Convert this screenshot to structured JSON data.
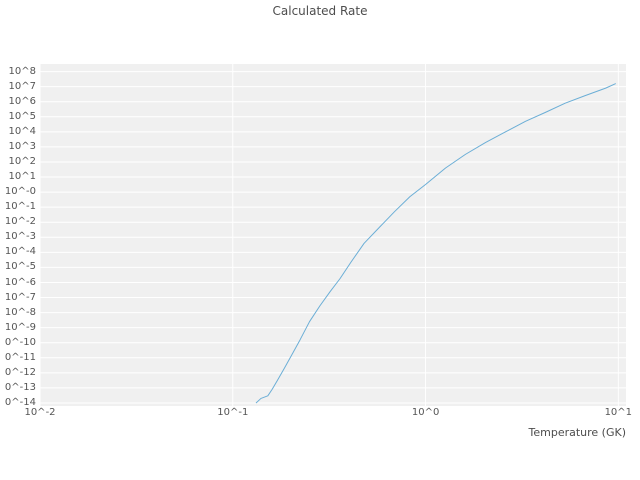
{
  "chart_data": {
    "type": "line",
    "title": "Calculated Rate",
    "xlabel": "Temperature (GK)",
    "ylabel": "",
    "x_scale": "log",
    "y_scale": "log",
    "xlim": [
      0.01,
      10.96
    ],
    "ylim": [
      6.3e-15,
      320000000.0
    ],
    "grid": true,
    "legend": false,
    "plot_bg_color": "#f0f0f0",
    "grid_color": "#ffffff",
    "title_color": "#4d4d4d",
    "tick_color": "#555555",
    "x_ticks": [
      {
        "label": "10^-2",
        "value": 0.01
      },
      {
        "label": "10^-1",
        "value": 0.1
      },
      {
        "label": "10^0",
        "value": 1
      },
      {
        "label": "10^1",
        "value": 10
      }
    ],
    "y_ticks": [
      {
        "label": "10^8",
        "exponent": 8
      },
      {
        "label": "10^7",
        "exponent": 7
      },
      {
        "label": "10^6",
        "exponent": 6
      },
      {
        "label": "10^5",
        "exponent": 5
      },
      {
        "label": "10^4",
        "exponent": 4
      },
      {
        "label": "10^3",
        "exponent": 3
      },
      {
        "label": "10^2",
        "exponent": 2
      },
      {
        "label": "10^1",
        "exponent": 1
      },
      {
        "label": "10^-0",
        "exponent": 0
      },
      {
        "label": "10^-1",
        "exponent": -1
      },
      {
        "label": "10^-2",
        "exponent": -2
      },
      {
        "label": "10^-3",
        "exponent": -3
      },
      {
        "label": "10^-4",
        "exponent": -4
      },
      {
        "label": "10^-5",
        "exponent": -5
      },
      {
        "label": "10^-6",
        "exponent": -6
      },
      {
        "label": "10^-7",
        "exponent": -7
      },
      {
        "label": "10^-8",
        "exponent": -8
      },
      {
        "label": "10^-9",
        "exponent": -9
      },
      {
        "label": "0^-10",
        "exponent": -10
      },
      {
        "label": "0^-11",
        "exponent": -11
      },
      {
        "label": "0^-12",
        "exponent": -12
      },
      {
        "label": "0^-13",
        "exponent": -13
      },
      {
        "label": "0^-14",
        "exponent": -14
      }
    ],
    "series": [
      {
        "name": "calculated-rate",
        "color": "#6baed6",
        "x": [
          0.132,
          0.14,
          0.152,
          0.16,
          0.17,
          0.185,
          0.2,
          0.223,
          0.25,
          0.283,
          0.32,
          0.36,
          0.41,
          0.48,
          0.58,
          0.69,
          0.83,
          1.0,
          1.27,
          1.61,
          2.05,
          2.6,
          3.3,
          4.2,
          5.3,
          6.7,
          8.6,
          9.7
        ],
        "y": [
          1e-14,
          2e-14,
          3e-14,
          8e-14,
          3e-13,
          2e-12,
          1.2e-11,
          1.5e-10,
          2.5e-09,
          2.8e-08,
          2.5e-07,
          1.8e-06,
          2.2e-05,
          0.0004,
          0.005,
          0.05,
          0.5,
          3.2,
          40,
          320,
          2000,
          10000.0,
          50000.0,
          200000.0,
          800000.0,
          2500000.0,
          8000000.0,
          16000000.0
        ]
      }
    ]
  }
}
